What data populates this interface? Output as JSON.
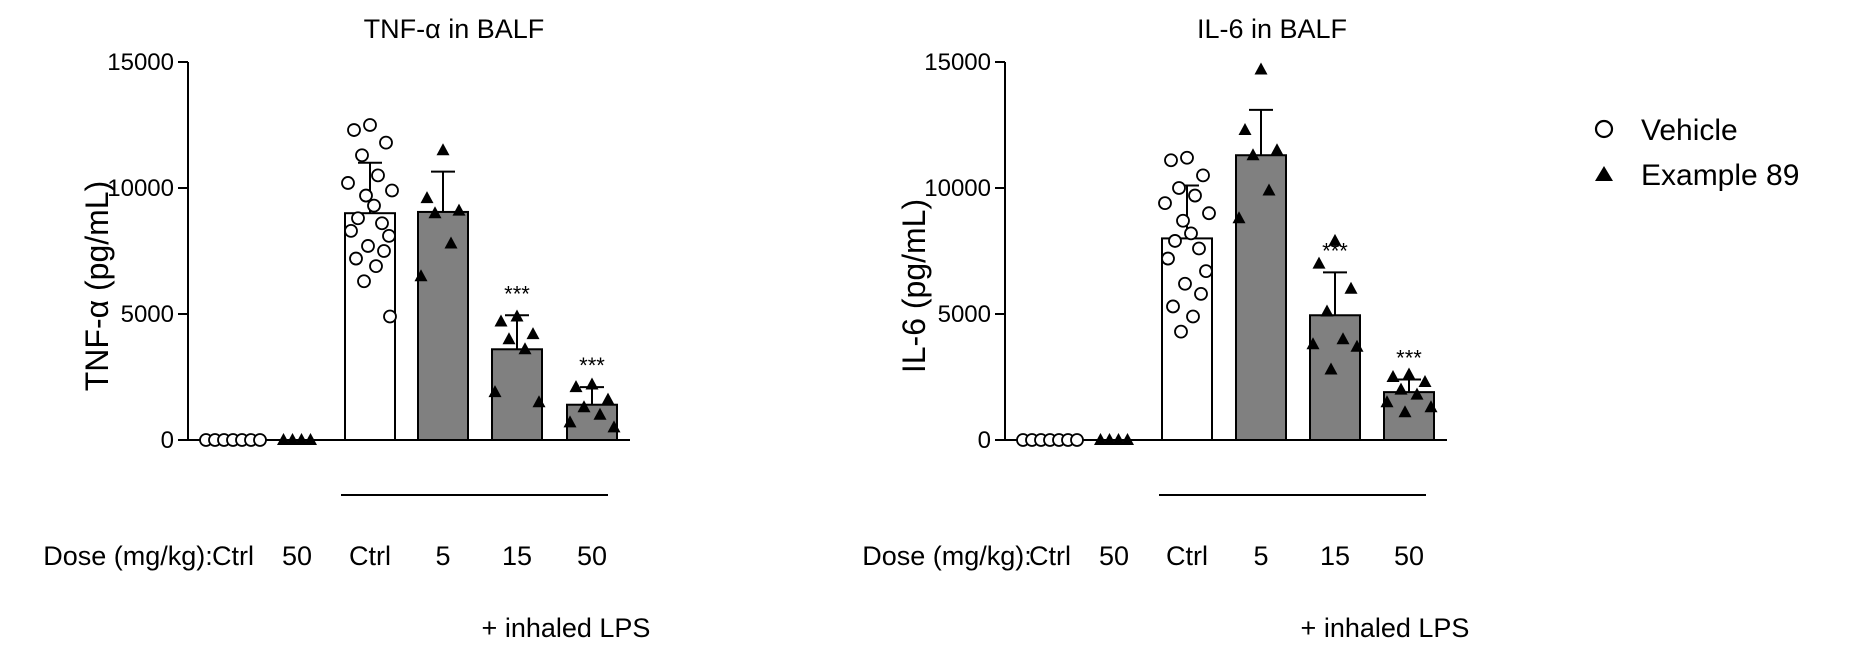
{
  "x_row_label": "Dose (mg/kg):",
  "bracket_label": "+ inhaled LPS",
  "legend": [
    {
      "label": "Vehicle",
      "marker": "open-circle"
    },
    {
      "label": "Example 89",
      "marker": "filled-triangle"
    }
  ],
  "colors": {
    "vehicle_bar": "#ffffff",
    "treated_bar": "#808080",
    "marker": "#000000"
  },
  "chart_data": [
    {
      "type": "bar",
      "title": "TNF-α in BALF",
      "ylabel": "TNF-α (pg/mL)",
      "ylim": [
        0,
        15000
      ],
      "yticks": [
        0,
        5000,
        10000,
        15000
      ],
      "categories": [
        "Ctrl",
        "50",
        "Ctrl",
        "5",
        "15",
        "50"
      ],
      "groups": [
        {
          "dose": "Ctrl",
          "treatment": "Vehicle",
          "lps": false,
          "mean": 0,
          "sd": 0,
          "points": [
            0,
            0,
            0,
            0,
            0,
            0,
            0
          ],
          "annotation": ""
        },
        {
          "dose": "50",
          "treatment": "Example 89",
          "lps": false,
          "mean": 0,
          "sd": 0,
          "points": [
            0,
            0,
            0,
            0
          ],
          "annotation": ""
        },
        {
          "dose": "Ctrl",
          "treatment": "Vehicle",
          "lps": true,
          "mean": 9000,
          "sd": 2000,
          "points": [
            12500,
            12300,
            11800,
            11300,
            10500,
            10200,
            9900,
            9700,
            9300,
            8800,
            8600,
            8300,
            8100,
            7700,
            7500,
            7200,
            6900,
            6300,
            4900
          ],
          "annotation": ""
        },
        {
          "dose": "5",
          "treatment": "Example 89",
          "lps": true,
          "mean": 9050,
          "sd": 1600,
          "points": [
            11500,
            9600,
            9100,
            9000,
            7800,
            6500
          ],
          "annotation": ""
        },
        {
          "dose": "15",
          "treatment": "Example 89",
          "lps": true,
          "mean": 3600,
          "sd": 1350,
          "points": [
            4900,
            4700,
            4200,
            4000,
            3600,
            1900,
            1500
          ],
          "annotation": "***"
        },
        {
          "dose": "50",
          "treatment": "Example 89",
          "lps": true,
          "mean": 1400,
          "sd": 700,
          "points": [
            2200,
            2100,
            1600,
            1300,
            1000,
            700,
            500
          ],
          "annotation": "***"
        }
      ]
    },
    {
      "type": "bar",
      "title": "IL-6 in BALF",
      "ylabel": "IL-6 (pg/mL)",
      "ylim": [
        0,
        15000
      ],
      "yticks": [
        0,
        5000,
        10000,
        15000
      ],
      "categories": [
        "Ctrl",
        "50",
        "Ctrl",
        "5",
        "15",
        "50"
      ],
      "groups": [
        {
          "dose": "Ctrl",
          "treatment": "Vehicle",
          "lps": false,
          "mean": 0,
          "sd": 0,
          "points": [
            0,
            0,
            0,
            0,
            0,
            0,
            0
          ],
          "annotation": ""
        },
        {
          "dose": "50",
          "treatment": "Example 89",
          "lps": false,
          "mean": 0,
          "sd": 0,
          "points": [
            0,
            0,
            0,
            0
          ],
          "annotation": ""
        },
        {
          "dose": "Ctrl",
          "treatment": "Vehicle",
          "lps": true,
          "mean": 8000,
          "sd": 2100,
          "points": [
            11200,
            11100,
            10500,
            10000,
            9700,
            9400,
            9000,
            8700,
            8200,
            7900,
            7600,
            7200,
            6700,
            6200,
            5800,
            5300,
            4900,
            4300
          ],
          "annotation": ""
        },
        {
          "dose": "5",
          "treatment": "Example 89",
          "lps": true,
          "mean": 11300,
          "sd": 1800,
          "points": [
            14700,
            12300,
            11500,
            11300,
            9900,
            8800
          ],
          "annotation": ""
        },
        {
          "dose": "15",
          "treatment": "Example 89",
          "lps": true,
          "mean": 4950,
          "sd": 1700,
          "points": [
            7900,
            7000,
            6000,
            5100,
            4000,
            3800,
            3700,
            2800
          ],
          "annotation": "***"
        },
        {
          "dose": "50",
          "treatment": "Example 89",
          "lps": true,
          "mean": 1900,
          "sd": 500,
          "points": [
            2600,
            2500,
            2300,
            2000,
            1800,
            1500,
            1300,
            1100
          ],
          "annotation": "***"
        }
      ]
    }
  ]
}
